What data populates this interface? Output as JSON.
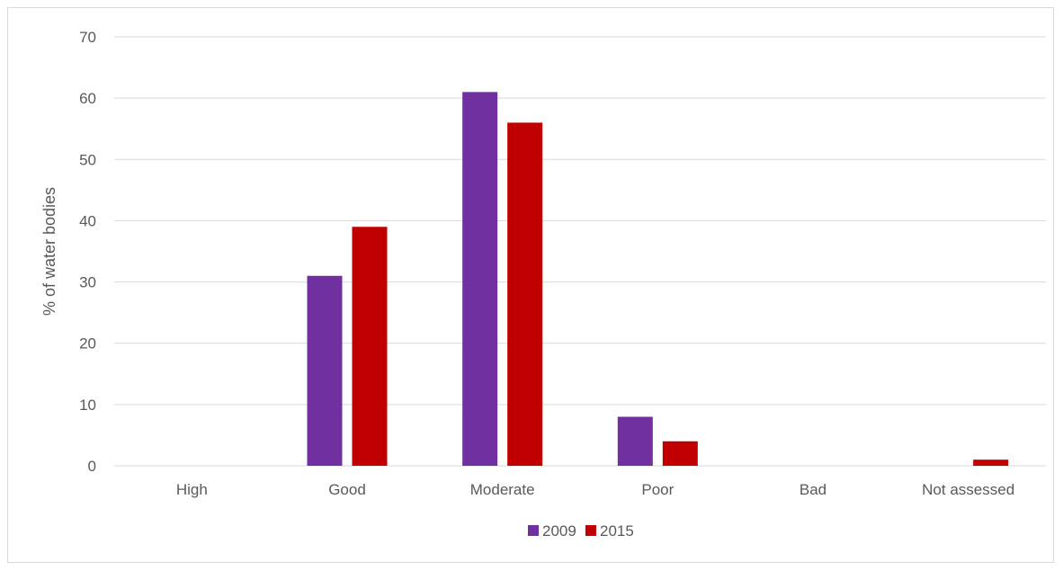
{
  "chart_data": {
    "type": "bar",
    "title": "",
    "xlabel": "",
    "ylabel": "% of water bodies",
    "ylim": [
      0,
      70
    ],
    "yticks": [
      0,
      10,
      20,
      30,
      40,
      50,
      60,
      70
    ],
    "grid": true,
    "legend_position": "bottom",
    "categories": [
      "High",
      "Good",
      "Moderate",
      "Poor",
      "Bad",
      "Not assessed"
    ],
    "series": [
      {
        "name": "2009",
        "color": "#7030A0",
        "values": [
          0,
          31,
          61,
          8,
          0,
          0
        ]
      },
      {
        "name": "2015",
        "color": "#C00000",
        "values": [
          0,
          39,
          56,
          4,
          0,
          1
        ]
      }
    ]
  }
}
